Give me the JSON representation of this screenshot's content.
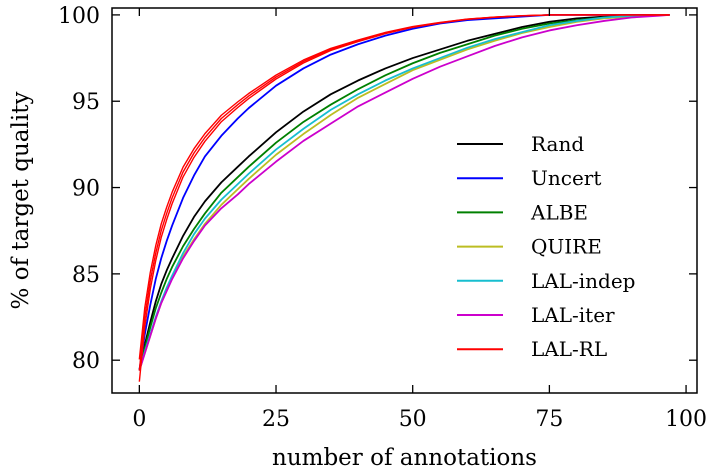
{
  "chart_data": {
    "type": "line",
    "xlabel": "number of annotations",
    "ylabel": "% of target quality",
    "xlim": [
      -5,
      102
    ],
    "ylim": [
      78.1,
      100.4
    ],
    "xticks": [
      0,
      25,
      50,
      75,
      100
    ],
    "yticks": [
      80,
      85,
      90,
      95,
      100
    ],
    "xtick_labels": [
      "0",
      "25",
      "50",
      "75",
      "100"
    ],
    "ytick_labels": [
      "80",
      "85",
      "90",
      "95",
      "100"
    ],
    "grid": false,
    "legend_position": "center-right",
    "x": [
      0,
      1,
      2,
      3,
      4,
      5,
      6,
      8,
      10,
      12,
      15,
      18,
      20,
      25,
      30,
      35,
      40,
      45,
      50,
      55,
      60,
      65,
      70,
      75,
      80,
      85,
      90,
      95,
      97
    ],
    "series": [
      {
        "name": "Rand",
        "color": "#000000",
        "values": [
          79.4,
          80.9,
          82.2,
          83.4,
          84.4,
          85.2,
          85.9,
          87.2,
          88.3,
          89.2,
          90.3,
          91.2,
          91.8,
          93.2,
          94.4,
          95.4,
          96.2,
          96.9,
          97.5,
          98.0,
          98.5,
          98.9,
          99.3,
          99.6,
          99.8,
          99.9,
          100.0,
          100.0,
          100.0
        ]
      },
      {
        "name": "Uncert",
        "color": "#0000ff",
        "values": [
          79.4,
          81.5,
          83.2,
          84.7,
          85.9,
          86.9,
          87.8,
          89.4,
          90.7,
          91.8,
          93.0,
          94.0,
          94.6,
          95.9,
          96.9,
          97.7,
          98.3,
          98.8,
          99.2,
          99.5,
          99.7,
          99.8,
          99.9,
          100.0,
          100.0,
          100.0,
          100.0,
          100.0,
          100.0
        ]
      },
      {
        "name": "ALBE",
        "color": "#008000",
        "values": [
          79.4,
          80.7,
          81.9,
          83.0,
          83.9,
          84.7,
          85.4,
          86.6,
          87.6,
          88.5,
          89.7,
          90.6,
          91.2,
          92.6,
          93.8,
          94.8,
          95.7,
          96.5,
          97.2,
          97.8,
          98.3,
          98.8,
          99.2,
          99.5,
          99.7,
          99.85,
          99.95,
          100.0,
          100.0
        ]
      },
      {
        "name": "QUIRE",
        "color": "#bcbd22",
        "values": [
          79.4,
          80.4,
          81.4,
          82.4,
          83.3,
          84.1,
          84.8,
          86.0,
          87.0,
          87.9,
          89.0,
          89.9,
          90.5,
          91.9,
          93.1,
          94.2,
          95.2,
          96.0,
          96.8,
          97.4,
          98.0,
          98.5,
          98.95,
          99.3,
          99.6,
          99.8,
          99.9,
          100.0,
          100.0
        ]
      },
      {
        "name": "LAL-indep",
        "color": "#17becf",
        "values": [
          79.4,
          80.5,
          81.5,
          82.5,
          83.4,
          84.2,
          84.9,
          86.2,
          87.3,
          88.2,
          89.3,
          90.2,
          90.8,
          92.2,
          93.4,
          94.5,
          95.4,
          96.2,
          96.9,
          97.5,
          98.1,
          98.6,
          99.0,
          99.4,
          99.65,
          99.85,
          99.95,
          100.0,
          100.0
        ]
      },
      {
        "name": "LAL-iter",
        "color": "#cc00cc",
        "values": [
          79.4,
          80.4,
          81.4,
          82.4,
          83.3,
          84.0,
          84.7,
          85.9,
          86.9,
          87.8,
          88.8,
          89.6,
          90.2,
          91.5,
          92.7,
          93.7,
          94.7,
          95.5,
          96.3,
          97.0,
          97.6,
          98.2,
          98.7,
          99.1,
          99.4,
          99.65,
          99.85,
          99.95,
          100.0
        ]
      },
      {
        "name": "LAL-RL",
        "color": "#ff0000",
        "values": [
          79.4,
          82.5,
          84.6,
          86.2,
          87.5,
          88.5,
          89.4,
          90.9,
          92.0,
          92.9,
          94.0,
          94.8,
          95.3,
          96.4,
          97.3,
          98.0,
          98.5,
          98.95,
          99.3,
          99.55,
          99.75,
          99.87,
          99.95,
          100.0,
          100.0,
          100.0,
          100.0,
          100.0,
          100.0
        ]
      }
    ]
  }
}
